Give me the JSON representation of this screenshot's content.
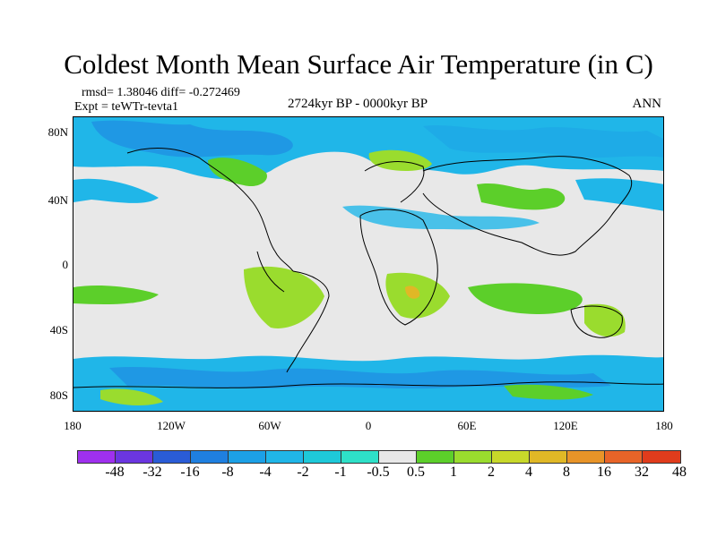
{
  "title": "Coldest Month Mean Surface Air Temperature (in C)",
  "stats": "rmsd= 1.38046 diff= -0.272469",
  "experiment": "Expt = teWTr-tevta1",
  "period": "2724kyr BP - 0000kyr BP",
  "season": "ANN",
  "y_ticks": [
    "80N",
    "40N",
    "0",
    "40S",
    "80S"
  ],
  "x_ticks": [
    "180",
    "120W",
    "60W",
    "0",
    "60E",
    "120E",
    "180"
  ],
  "colorbar": {
    "labels": [
      "-48",
      "-32",
      "-16",
      "-8",
      "-4",
      "-2",
      "-1",
      "-0.5",
      "0.5",
      "1",
      "2",
      "4",
      "8",
      "16",
      "32",
      "48"
    ],
    "colors": [
      "#9f30ee",
      "#6b36e0",
      "#2a5cd6",
      "#1f7fe0",
      "#1ca0e6",
      "#20b6e8",
      "#1ec9d9",
      "#2ee0c8",
      "#e8e8e8",
      "#5ccf2a",
      "#9adc2e",
      "#c8d82a",
      "#e0b826",
      "#e89428",
      "#e86428",
      "#e03c1c"
    ]
  },
  "legend_colors": {
    "neutral": "#e8e8e8",
    "cool_light": "#20b6e8",
    "cool_medium": "#1f7fe0",
    "warm_light": "#9adc2e",
    "warm_medium": "#5ccf2a",
    "warm_strong": "#e0b826"
  }
}
